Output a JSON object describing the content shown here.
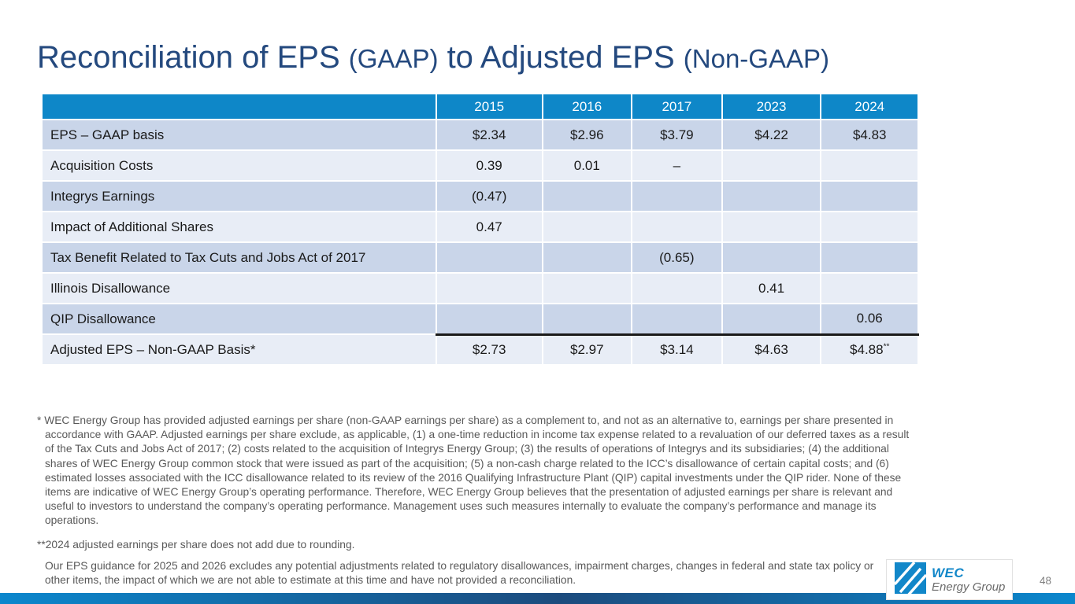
{
  "title": {
    "segments": [
      {
        "text": "Reconciliation of EPS "
      },
      {
        "text": "(GAAP)"
      },
      {
        "text": " to Adjusted EPS "
      },
      {
        "text": "(Non-GAAP)"
      }
    ]
  },
  "table": {
    "years": [
      "2015",
      "2016",
      "2017",
      "2023",
      "2024"
    ],
    "rows": [
      {
        "label": "EPS – GAAP basis",
        "values": [
          "$2.34",
          "$2.96",
          "$3.79",
          "$4.22",
          "$4.83"
        ]
      },
      {
        "label": "Acquisition Costs",
        "values": [
          "0.39",
          "0.01",
          "–",
          "",
          ""
        ]
      },
      {
        "label": "Integrys Earnings",
        "values": [
          "(0.47)",
          "",
          "",
          "",
          ""
        ]
      },
      {
        "label": "Impact of Additional Shares",
        "values": [
          "0.47",
          "",
          "",
          "",
          ""
        ]
      },
      {
        "label": "Tax Benefit Related to Tax Cuts and Jobs Act of 2017",
        "values": [
          "",
          "",
          "(0.65)",
          "",
          ""
        ]
      },
      {
        "label": "Illinois Disallowance",
        "values": [
          "",
          "",
          "",
          "0.41",
          ""
        ]
      },
      {
        "label": "QIP Disallowance",
        "values": [
          "",
          "",
          "",
          "",
          "0.06"
        ]
      },
      {
        "label": "Adjusted EPS – Non-GAAP Basis*",
        "values": [
          "$2.73",
          "$2.97",
          "$3.14",
          "$4.63",
          "$4.88"
        ],
        "sup": "**",
        "total": true
      }
    ]
  },
  "footnotes": {
    "definition": "* WEC Energy Group has provided adjusted earnings per share (non-GAAP earnings per share) as a complement to, and not as an  alternative to, earnings per share presented in accordance with GAAP. Adjusted earnings per share exclude, as applicable, (1) a one-time reduction in income tax expense related to a revaluation of our deferred taxes as a result of the Tax Cuts and Jobs Act of 2017; (2) costs related to the acquisition of Integrys Energy Group; (3) the results of operations of Integrys and its subsidiaries; (4) the additional shares of WEC Energy Group common stock that were issued as part of the acquisition; (5) a non-cash charge related to the ICC’s disallowance of certain capital costs; and (6) estimated losses associated with the ICC disallowance related to its review of the 2016 Qualifying Infrastructure Plant (QIP) capital investments under the QIP rider. None of these items are indicative of WEC Energy Group’s operating performance. Therefore, WEC Energy Group believes that the presentation of adjusted earnings per share is relevant and useful to investors to understand the company’s operating performance. Management uses such measures internally to evaluate the company’s performance and manage its operations.",
    "rounding": "**2024 adjusted earnings per share does not add due to rounding.",
    "guidance": "Our EPS guidance for 2025 and 2026 excludes any potential adjustments related to regulatory disallowances, impairment charges, changes in federal and state tax policy or other items, the impact of which we are not able to estimate at this time and have not provided a reconciliation."
  },
  "footer": {
    "page_number": "48",
    "logo_name": "WEC",
    "logo_subname": "Energy Group"
  },
  "colors": {
    "title": "#24497E",
    "header_blue": "#0E87C8",
    "band_dark": "#C9D5E9",
    "band_light": "#E8EDF6",
    "footnote_gray": "#595959",
    "bar_gradient_edge": "#0B87CD",
    "bar_gradient_center": "#1C4B7D"
  }
}
